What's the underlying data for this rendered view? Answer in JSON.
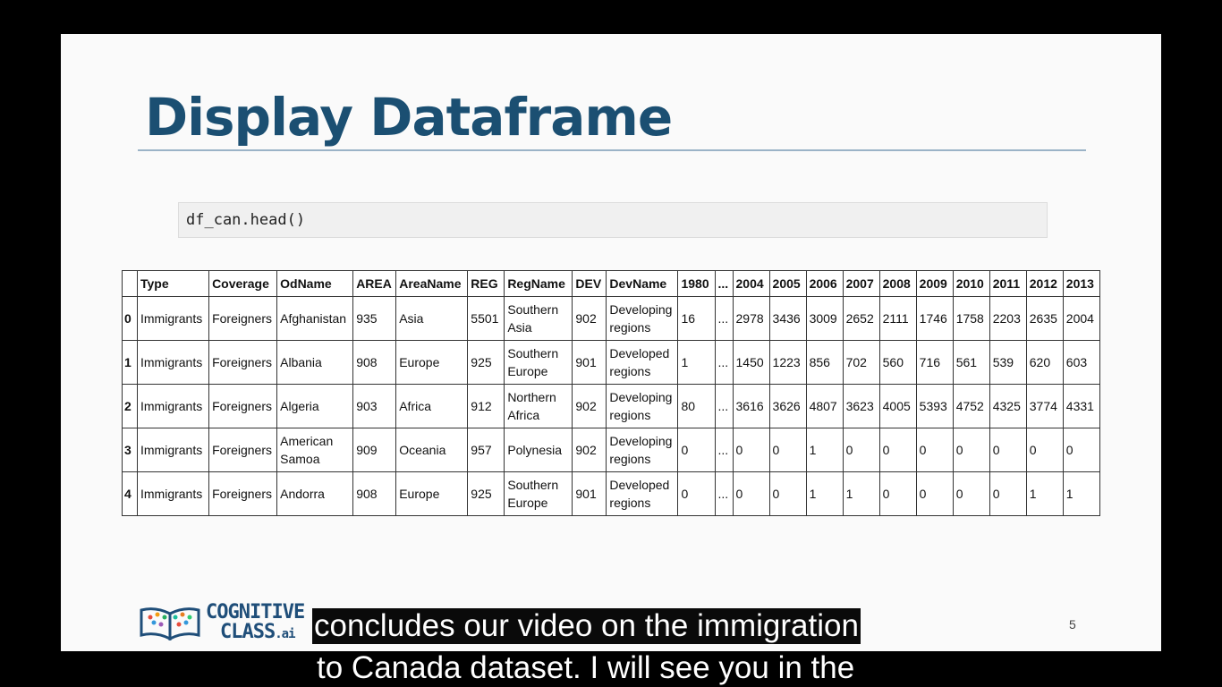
{
  "slide": {
    "title": "Display Dataframe",
    "code": "df_can.head()",
    "page_number": "5"
  },
  "table": {
    "headers": [
      "",
      "Type",
      "Coverage",
      "OdName",
      "AREA",
      "AreaName",
      "REG",
      "RegName",
      "DEV",
      "DevName",
      "1980",
      "...",
      "2004",
      "2005",
      "2006",
      "2007",
      "2008",
      "2009",
      "2010",
      "2011",
      "2012",
      "2013"
    ],
    "rows": [
      [
        "0",
        "Immigrants",
        "Foreigners",
        "Afghanistan",
        "935",
        "Asia",
        "5501",
        "Southern Asia",
        "902",
        "Developing regions",
        "16",
        "...",
        "2978",
        "3436",
        "3009",
        "2652",
        "2111",
        "1746",
        "1758",
        "2203",
        "2635",
        "2004"
      ],
      [
        "1",
        "Immigrants",
        "Foreigners",
        "Albania",
        "908",
        "Europe",
        "925",
        "Southern Europe",
        "901",
        "Developed regions",
        "1",
        "...",
        "1450",
        "1223",
        "856",
        "702",
        "560",
        "716",
        "561",
        "539",
        "620",
        "603"
      ],
      [
        "2",
        "Immigrants",
        "Foreigners",
        "Algeria",
        "903",
        "Africa",
        "912",
        "Northern Africa",
        "902",
        "Developing regions",
        "80",
        "...",
        "3616",
        "3626",
        "4807",
        "3623",
        "4005",
        "5393",
        "4752",
        "4325",
        "3774",
        "4331"
      ],
      [
        "3",
        "Immigrants",
        "Foreigners",
        "American Samoa",
        "909",
        "Oceania",
        "957",
        "Polynesia",
        "902",
        "Developing regions",
        "0",
        "...",
        "0",
        "0",
        "1",
        "0",
        "0",
        "0",
        "0",
        "0",
        "0",
        "0"
      ],
      [
        "4",
        "Immigrants",
        "Foreigners",
        "Andorra",
        "908",
        "Europe",
        "925",
        "Southern Europe",
        "901",
        "Developed regions",
        "0",
        "...",
        "0",
        "0",
        "1",
        "1",
        "0",
        "0",
        "0",
        "0",
        "1",
        "1"
      ]
    ]
  },
  "logo": {
    "line1": "COGNITIVE",
    "line2": "CLASS",
    "suffix": ".ai"
  },
  "captions": {
    "line1": "concludes our video on the immigration",
    "line2": "to Canada dataset. I will see you in the"
  },
  "colors": {
    "title": "#1b4f72",
    "background": "#000000",
    "slide": "#fafafa"
  }
}
